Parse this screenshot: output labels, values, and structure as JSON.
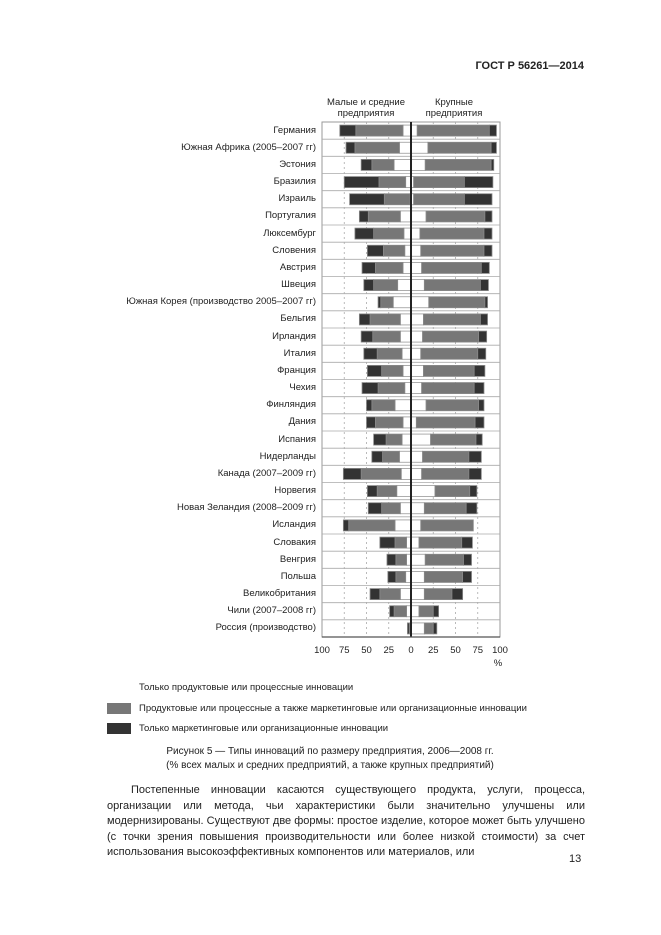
{
  "header": {
    "doc_id": "ГОСТ Р 56261—2014"
  },
  "chart_data": {
    "type": "bar",
    "orientation": "horizontal-diverging-stacked",
    "panels": [
      {
        "title_lines": [
          "Малые и средние",
          "предприятия"
        ],
        "direction": "left"
      },
      {
        "title_lines": [
          "Крупные",
          "предприятия"
        ],
        "direction": "right"
      }
    ],
    "categories": [
      "Германия",
      "Южная Африка (2005–2007 гг)",
      "Эстония",
      "Бразилия",
      "Израиль",
      "Португалия",
      "Люксембург",
      "Словения",
      "Австрия",
      "Швеция",
      "Южная Корея (производство 2005–2007 гг)",
      "Бельгия",
      "Ирландия",
      "Италия",
      "Франция",
      "Чехия",
      "Финляндия",
      "Дания",
      "Испания",
      "Нидерланды",
      "Канада (2007–2009 гг)",
      "Норвегия",
      "Новая Зеландия (2008–2009 гг)",
      "Исландия",
      "Словакия",
      "Венгрия",
      "Польша",
      "Великобритания",
      "Чили (2007–2008 гг)",
      "Россия (производство)"
    ],
    "series": [
      {
        "name": "Только продуктовые или процессные инновации",
        "color": "#ffffff",
        "sme": [
          9,
          13,
          19,
          6,
          1,
          12,
          8,
          7,
          9,
          15,
          20,
          12,
          12,
          10,
          9,
          7,
          18,
          9,
          10,
          13,
          11,
          16,
          12,
          18,
          5,
          5,
          6,
          12,
          5,
          0
        ],
        "large": [
          7,
          19,
          16,
          3,
          3,
          17,
          10,
          11,
          12,
          15,
          20,
          14,
          13,
          11,
          14,
          12,
          17,
          6,
          22,
          13,
          12,
          27,
          15,
          11,
          9,
          16,
          15,
          15,
          9,
          15
        ]
      },
      {
        "name": "Продуктовые или процессные  а также маркетинговые или организационные инновации",
        "color": "#777777",
        "sme": [
          53,
          50,
          25,
          30,
          29,
          36,
          34,
          24,
          31,
          27,
          14,
          34,
          31,
          28,
          24,
          30,
          26,
          31,
          18,
          19,
          45,
          22,
          21,
          52,
          13,
          12,
          11,
          23,
          14,
          2
        ],
        "large": [
          81,
          71,
          74,
          57,
          57,
          66,
          72,
          71,
          67,
          63,
          63,
          64,
          63,
          64,
          57,
          59,
          59,
          66,
          51,
          52,
          53,
          39,
          47,
          59,
          48,
          43,
          43,
          31,
          16,
          10
        ]
      },
      {
        "name": "Только маркетинговые или организационные инновации",
        "color": "#333333",
        "sme": [
          18,
          10,
          12,
          39,
          39,
          10,
          21,
          18,
          15,
          11,
          3,
          12,
          13,
          15,
          16,
          18,
          6,
          10,
          14,
          12,
          20,
          11,
          15,
          6,
          17,
          10,
          9,
          11,
          5,
          2
        ],
        "large": [
          8,
          6,
          3,
          32,
          31,
          8,
          9,
          9,
          9,
          9,
          3,
          8,
          9,
          9,
          12,
          11,
          6,
          10,
          7,
          14,
          14,
          8,
          12,
          0,
          12,
          9,
          10,
          12,
          6,
          4
        ]
      }
    ],
    "xaxis": {
      "ticks_left": [
        "100",
        "75",
        "50",
        "25",
        "0"
      ],
      "ticks_right": [
        "25",
        "50",
        "75",
        "100"
      ],
      "unit": "%",
      "range": [
        0,
        100
      ]
    },
    "grid": true,
    "legend_position": "bottom"
  },
  "caption": {
    "line1": "Рисунок 5 — Типы инноваций по размеру предприятия, 2006—2008 гг.",
    "line2": "(% всех малых и средних предприятий, а также крупных предприятий)"
  },
  "paragraph": "Постепенные инновации касаются существующего продукта, услуги, процесса, организации или метода, чьи характеристики были значительно улучшены или модернизированы. Существуют две формы: простое изделие, которое может быть улучшено (с точки зрения повышения производительности или более низкой стоимости) за счет использования высокоэффективных компонентов или материалов, или",
  "page_number": "13"
}
